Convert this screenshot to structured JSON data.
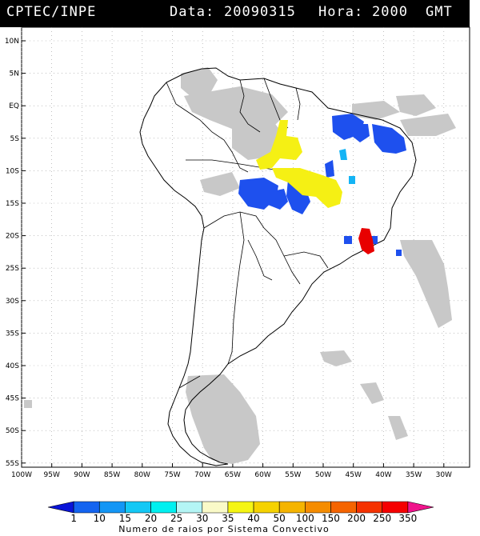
{
  "header": {
    "source": "CPTEC/INPE",
    "date_label": "Data:",
    "date": "20090315",
    "hour_label": "Hora:",
    "hour": "2000",
    "tz": "GMT"
  },
  "map": {
    "lat_ticks": [
      "10N",
      "5N",
      "EQ",
      "5S",
      "10S",
      "15S",
      "20S",
      "25S",
      "30S",
      "35S",
      "40S",
      "45S",
      "50S",
      "55S"
    ],
    "lon_ticks": [
      "100W",
      "95W",
      "90W",
      "85W",
      "80W",
      "75W",
      "70W",
      "65W",
      "60W",
      "55W",
      "50W",
      "45W",
      "40W",
      "35W",
      "30W"
    ],
    "colors": {
      "coast": "#000000",
      "cloud": "#c8c8c8",
      "grid": "#999999"
    }
  },
  "colorbar": {
    "labels": [
      "1",
      "10",
      "15",
      "20",
      "25",
      "30",
      "35",
      "40",
      "50",
      "100",
      "150",
      "200",
      "250",
      "350"
    ],
    "colors": [
      "#0a14d8",
      "#1464f0",
      "#1496f5",
      "#14c8f5",
      "#00f0f0",
      "#b4f5f5",
      "#fafac8",
      "#f5f514",
      "#f5d200",
      "#f5b400",
      "#f58c00",
      "#f56400",
      "#f53200",
      "#f50000",
      "#f0148c"
    ],
    "title": "Numero de raios por Sistema Convectivo"
  }
}
